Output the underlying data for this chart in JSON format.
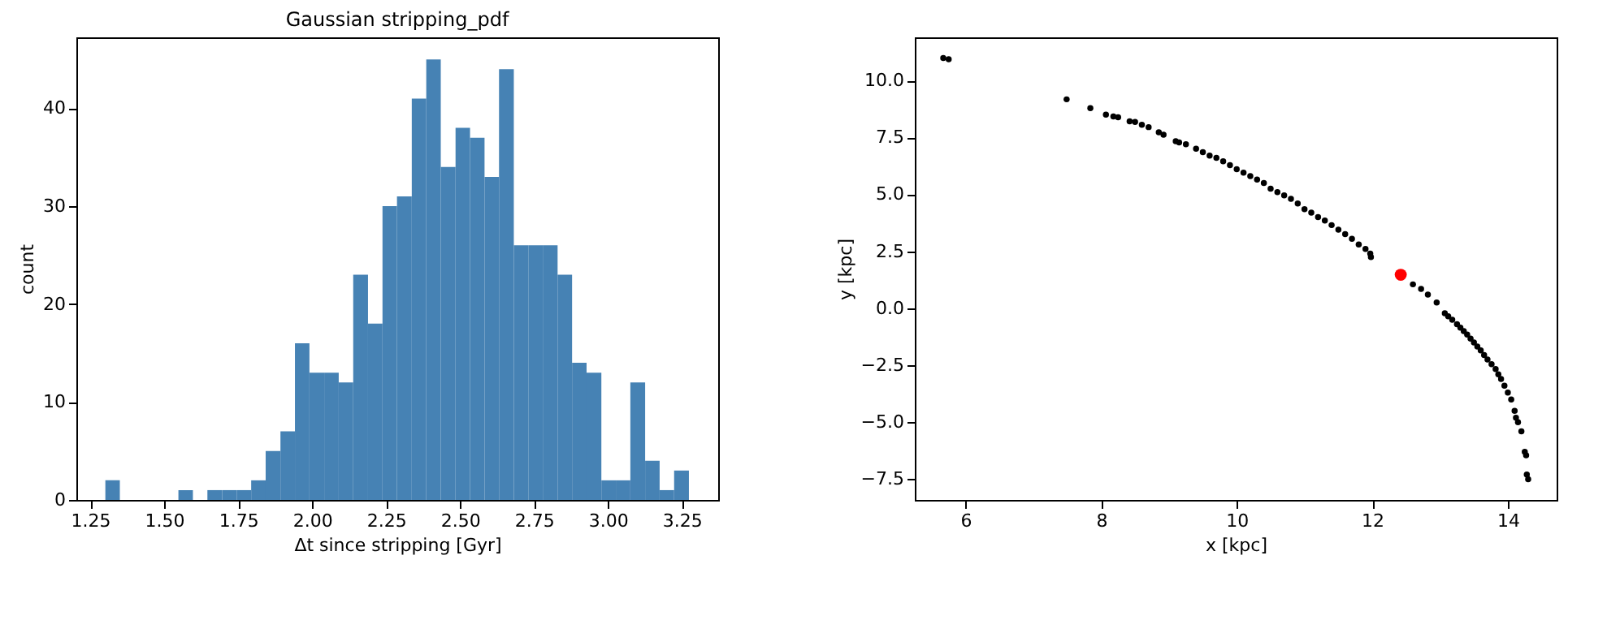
{
  "chart_data": [
    {
      "type": "histogram",
      "title": "Gaussian stripping_pdf",
      "xlabel": "Δt since stripping [Gyr]",
      "ylabel": "count",
      "color": "#4682b4",
      "bins": [
        1.301,
        1.35,
        1.4,
        1.449,
        1.498,
        1.548,
        1.597,
        1.646,
        1.696,
        1.745,
        1.794,
        1.843,
        1.893,
        1.942,
        1.991,
        2.041,
        2.09,
        2.139,
        2.189,
        2.238,
        2.287,
        2.337,
        2.386,
        2.435,
        2.485,
        2.534,
        2.583,
        2.632,
        2.682,
        2.731,
        2.78,
        2.83,
        2.879,
        2.928,
        2.978,
        3.027,
        3.076,
        3.126,
        3.175,
        3.224,
        3.274
      ],
      "values": [
        2,
        0,
        0,
        0,
        0,
        1,
        0,
        1,
        1,
        1,
        2,
        5,
        7,
        16,
        13,
        13,
        12,
        23,
        18,
        30,
        31,
        41,
        45,
        34,
        38,
        37,
        33,
        44,
        26,
        26,
        26,
        23,
        14,
        13,
        2,
        2,
        12,
        4,
        1,
        3
      ],
      "xlim": [
        1.203,
        3.373
      ],
      "xticks": [
        1.25,
        {
          "value": 1.5,
          "label": "1.50"
        },
        1.75,
        {
          "value": 2.0,
          "label": "2.00"
        },
        2.25,
        {
          "value": 2.5,
          "label": "2.50"
        },
        2.75,
        {
          "value": 3.0,
          "label": "3.00"
        },
        3.25
      ],
      "ylim": [
        0,
        47.25
      ],
      "yticks": [
        0,
        10,
        20,
        30,
        40
      ],
      "grid": false
    },
    {
      "type": "scatter",
      "xlabel": "x [kpc]",
      "ylabel": "y [kpc]",
      "marker": "circle",
      "grid": false,
      "xlim": [
        5.25,
        14.72
      ],
      "xticks": [
        6,
        8,
        10,
        12,
        14
      ],
      "ylim": [
        -8.41,
        11.89
      ],
      "yticks": [
        {
          "value": -7.5,
          "label": "−7.5"
        },
        {
          "value": -5,
          "label": "−5.0"
        },
        {
          "value": -2.5,
          "label": "−2.5"
        },
        {
          "value": 0,
          "label": "0.0"
        },
        2.5,
        {
          "value": 5,
          "label": "5.0"
        },
        7.5,
        {
          "value": 10,
          "label": "10.0"
        }
      ],
      "series": [
        {
          "color": "#000000",
          "x": [
            5.67,
            5.75,
            7.49,
            7.84,
            8.07,
            8.18,
            8.25,
            8.42,
            8.5,
            8.6,
            8.7,
            8.85,
            8.92,
            9.1,
            9.15,
            9.25,
            9.4,
            9.5,
            9.6,
            9.7,
            9.8,
            9.9,
            10.0,
            10.1,
            10.2,
            10.3,
            10.4,
            10.5,
            10.6,
            10.7,
            10.8,
            10.9,
            11.0,
            11.1,
            11.2,
            11.3,
            11.4,
            11.5,
            11.6,
            11.7,
            11.8,
            11.9,
            11.97,
            11.98,
            12.6,
            12.72,
            12.82,
            12.95,
            13.07,
            13.12,
            13.18,
            13.25,
            13.3,
            13.35,
            13.4,
            13.45,
            13.5,
            13.55,
            13.6,
            13.65,
            13.7,
            13.76,
            13.82,
            13.86,
            13.9,
            13.95,
            14.0,
            14.05,
            14.1,
            14.12,
            14.15,
            14.2,
            14.25,
            14.27,
            14.28,
            14.3
          ],
          "values": [
            10.98,
            10.93,
            9.17,
            8.78,
            8.5,
            8.42,
            8.38,
            8.2,
            8.18,
            8.05,
            7.95,
            7.72,
            7.62,
            7.33,
            7.28,
            7.2,
            7.0,
            6.85,
            6.7,
            6.6,
            6.45,
            6.28,
            6.1,
            5.95,
            5.8,
            5.65,
            5.5,
            5.25,
            5.1,
            4.95,
            4.8,
            4.6,
            4.35,
            4.2,
            4.0,
            3.85,
            3.65,
            3.45,
            3.25,
            3.05,
            2.8,
            2.6,
            2.4,
            2.25,
            1.05,
            0.85,
            0.6,
            0.25,
            -0.22,
            -0.35,
            -0.5,
            -0.7,
            -0.85,
            -1.0,
            -1.15,
            -1.33,
            -1.5,
            -1.68,
            -1.85,
            -2.05,
            -2.25,
            -2.45,
            -2.67,
            -2.9,
            -3.1,
            -3.4,
            -3.7,
            -4.0,
            -4.5,
            -4.8,
            -5.0,
            -5.4,
            -6.3,
            -6.45,
            -7.3,
            -7.5
          ]
        },
        {
          "color": "#ff0000",
          "x": [
            12.42
          ],
          "values": [
            1.47
          ]
        }
      ]
    }
  ]
}
